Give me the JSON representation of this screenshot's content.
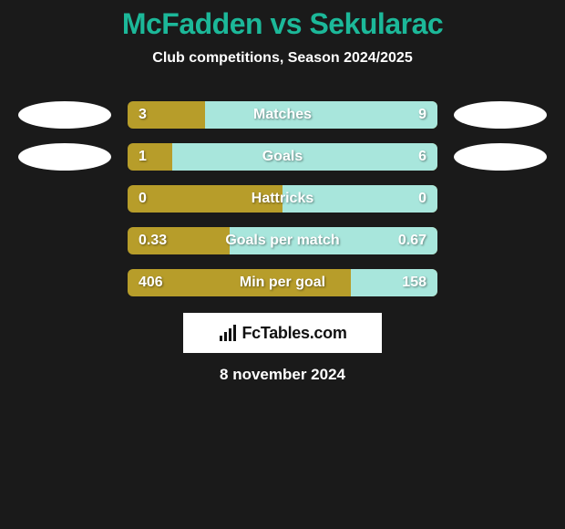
{
  "title": "McFadden vs Sekularac",
  "subtitle": "Club competitions, Season 2024/2025",
  "bar_colors": {
    "left": "#b79d2a",
    "right_fill": "#a8e6dc"
  },
  "text_color": "#ffffff",
  "title_color": "#1cb899",
  "background": "#1a1a1a",
  "rows": [
    {
      "label": "Matches",
      "left": "3",
      "right": "9",
      "right_pct": 75,
      "show_avatars": true
    },
    {
      "label": "Goals",
      "left": "1",
      "right": "6",
      "right_pct": 85.7,
      "show_avatars": true
    },
    {
      "label": "Hattricks",
      "left": "0",
      "right": "0",
      "right_pct": 50,
      "show_avatars": false
    },
    {
      "label": "Goals per match",
      "left": "0.33",
      "right": "0.67",
      "right_pct": 67,
      "show_avatars": false
    },
    {
      "label": "Min per goal",
      "left": "406",
      "right": "158",
      "right_pct": 28,
      "show_avatars": false
    }
  ],
  "logo_text": "FcTables.com",
  "date_text": "8 november 2024"
}
